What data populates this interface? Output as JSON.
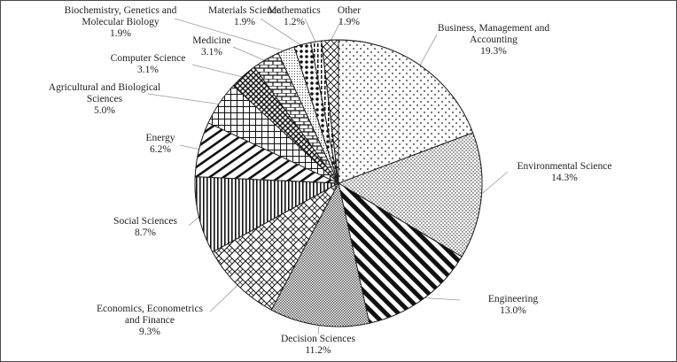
{
  "chart_data": {
    "type": "pie",
    "title": "",
    "unit": "%",
    "slices": [
      {
        "label_lines": [
          "Business, Management and",
          "Accounting"
        ],
        "value": 19.3,
        "value_text": "19.3%",
        "pattern": "dots"
      },
      {
        "label_lines": [
          "Environmental Science"
        ],
        "value": 14.3,
        "value_text": "14.3%",
        "pattern": "densedots"
      },
      {
        "label_lines": [
          "Engineering"
        ],
        "value": 13.0,
        "value_text": "13.0%",
        "pattern": "diagthick"
      },
      {
        "label_lines": [
          "Decision Sciences"
        ],
        "value": 11.2,
        "value_text": "11.2%",
        "pattern": "fine"
      },
      {
        "label_lines": [
          "Economics, Econometrics",
          "and Finance"
        ],
        "value": 9.3,
        "value_text": "9.3%",
        "pattern": "weave"
      },
      {
        "label_lines": [
          "Social Sciences"
        ],
        "value": 8.7,
        "value_text": "8.7%",
        "pattern": "vert"
      },
      {
        "label_lines": [
          "Energy"
        ],
        "value": 6.2,
        "value_text": "6.2%",
        "pattern": "wideup"
      },
      {
        "label_lines": [
          "Agricultural and Biological",
          "Sciences"
        ],
        "value": 5.0,
        "value_text": "5.0%",
        "pattern": "grid"
      },
      {
        "label_lines": [
          "Computer Science"
        ],
        "value": 3.1,
        "value_text": "3.1%",
        "pattern": "diagcross"
      },
      {
        "label_lines": [
          "Medicine"
        ],
        "value": 3.1,
        "value_text": "3.1%",
        "pattern": "brick"
      },
      {
        "label_lines": [
          "Biochemistry, Genetics and",
          "Molecular Biology"
        ],
        "value": 1.9,
        "value_text": "1.9%",
        "pattern": "smalldots"
      },
      {
        "label_lines": [
          "Materials Science"
        ],
        "value": 1.9,
        "value_text": "1.9%",
        "pattern": "bigdots"
      },
      {
        "label_lines": [
          "Mathematics"
        ],
        "value": 1.2,
        "value_text": "1.2%",
        "pattern": "vertdash"
      },
      {
        "label_lines": [
          "Other"
        ],
        "value": 1.9,
        "value_text": "1.9%",
        "pattern": "lattice"
      }
    ],
    "colors": {
      "stroke": "#222222",
      "fill": "#ffffff",
      "pattern_ink": "#1a1a1a",
      "leader": "#999999"
    }
  }
}
